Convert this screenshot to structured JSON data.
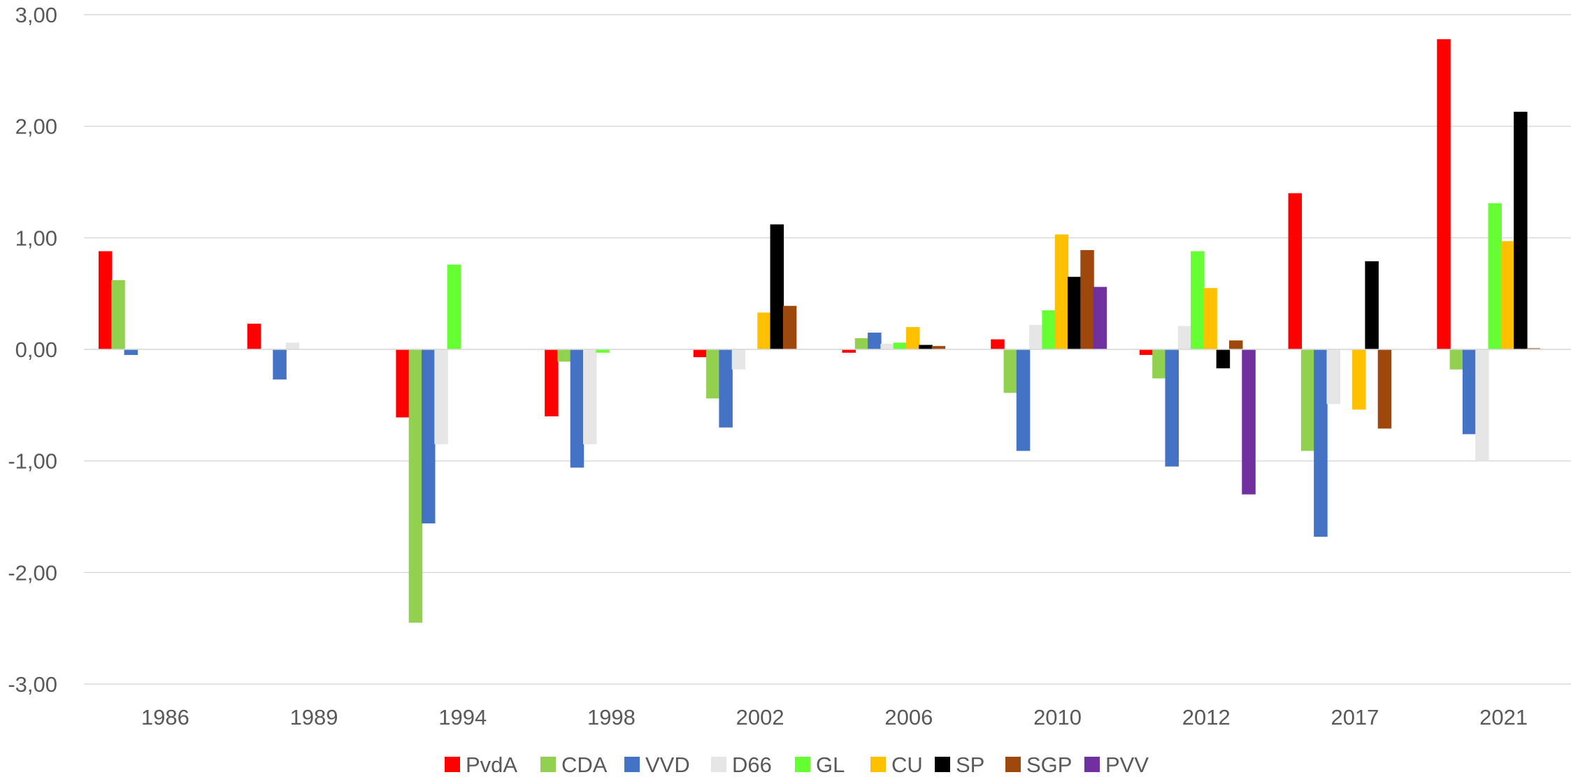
{
  "chart_data": {
    "type": "bar",
    "title": "",
    "xlabel": "",
    "ylabel": "",
    "ylim": [
      -3,
      3
    ],
    "yticks": [
      "3,00",
      "2,00",
      "1,00",
      "0,00",
      "-1,00",
      "-2,00",
      "-3,00"
    ],
    "ytick_values": [
      3,
      2,
      1,
      0,
      -1,
      -2,
      -3
    ],
    "grid": true,
    "legend_position": "bottom",
    "categories": [
      "1986",
      "1989",
      "1994",
      "1998",
      "2002",
      "2006",
      "2010",
      "2012",
      "2017",
      "2021"
    ],
    "series": [
      {
        "name": "PvdA",
        "color": "#FF0000",
        "values": [
          0.88,
          0.23,
          -0.61,
          -0.6,
          -0.07,
          -0.03,
          0.09,
          -0.05,
          1.4,
          2.78
        ]
      },
      {
        "name": "CDA",
        "color": "#92D050",
        "values": [
          0.62,
          null,
          -2.45,
          -0.11,
          -0.44,
          0.1,
          -0.39,
          -0.26,
          -0.91,
          -0.18
        ]
      },
      {
        "name": "VVD",
        "color": "#4472C4",
        "values": [
          -0.05,
          -0.27,
          -1.56,
          -1.06,
          -0.7,
          0.15,
          -0.91,
          -1.05,
          -1.68,
          -0.76
        ]
      },
      {
        "name": "D66",
        "color": "#E7E6E6",
        "values": [
          null,
          0.06,
          -0.85,
          -0.85,
          -0.18,
          0.05,
          0.22,
          0.21,
          -0.49,
          -1.0
        ]
      },
      {
        "name": "GL",
        "color": "#66FF33",
        "values": [
          null,
          null,
          0.76,
          -0.03,
          null,
          0.06,
          0.35,
          0.88,
          null,
          1.31
        ]
      },
      {
        "name": "CU",
        "color": "#FFC000",
        "values": [
          null,
          null,
          null,
          null,
          0.33,
          0.2,
          1.03,
          0.55,
          -0.54,
          0.97
        ]
      },
      {
        "name": "SP",
        "color": "#000000",
        "values": [
          null,
          null,
          null,
          null,
          1.12,
          0.04,
          0.65,
          -0.17,
          0.79,
          2.13
        ]
      },
      {
        "name": "SGP",
        "color": "#9E480E",
        "values": [
          null,
          null,
          null,
          null,
          0.39,
          0.03,
          0.89,
          0.08,
          -0.71,
          0.01
        ]
      },
      {
        "name": "PVV",
        "color": "#7030A0",
        "values": [
          null,
          null,
          null,
          null,
          null,
          null,
          0.56,
          -1.3,
          null,
          null
        ]
      }
    ]
  }
}
